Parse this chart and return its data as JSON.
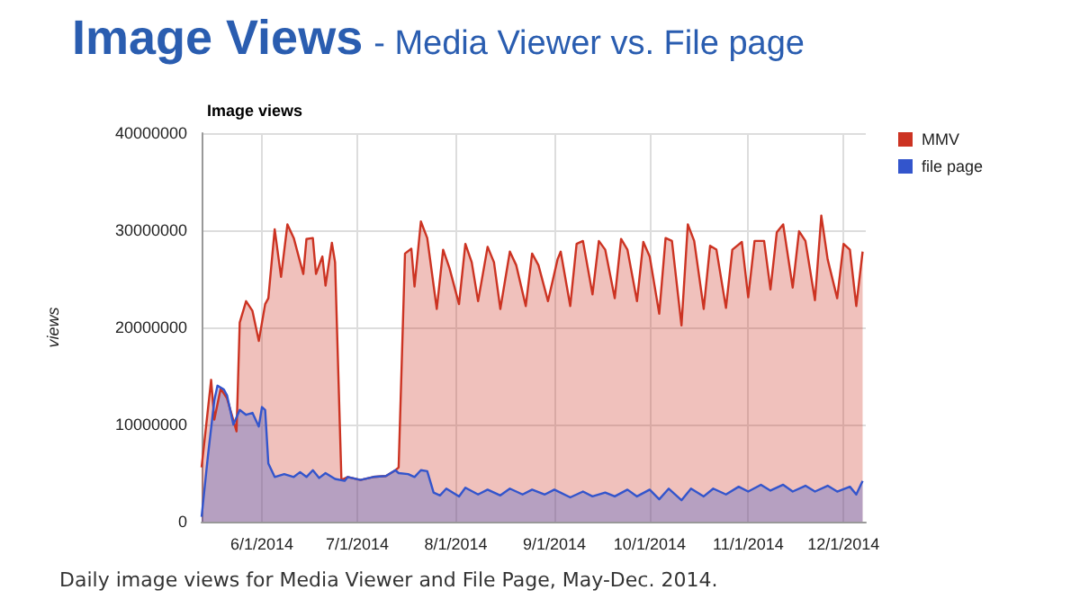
{
  "chart_data": {
    "type": "area",
    "title": "Image Views",
    "subtitle": "- Media Viewer vs. File page",
    "ylabel": "views",
    "annotations": [
      "Image views",
      "Daily image views for Media Viewer and File Page, May-Dec. 2014."
    ],
    "xlim": [
      "2014-05-13",
      "2014-12-08"
    ],
    "xticks": [
      {
        "value": "2014-06-01",
        "label": "6/1/2014"
      },
      {
        "value": "2014-07-01",
        "label": "7/1/2014"
      },
      {
        "value": "2014-08-01",
        "label": "8/1/2014"
      },
      {
        "value": "2014-09-01",
        "label": "9/1/2014"
      },
      {
        "value": "2014-10-01",
        "label": "10/1/2014"
      },
      {
        "value": "2014-11-01",
        "label": "11/1/2014"
      },
      {
        "value": "2014-12-01",
        "label": "12/1/2014"
      }
    ],
    "ylim": [
      0,
      40000000
    ],
    "yticks": [
      0,
      10000000,
      20000000,
      30000000,
      40000000
    ],
    "grid": true,
    "legend": "right",
    "marker": "none",
    "series": [
      {
        "name": "MMV",
        "color": "#cc3322",
        "x": [
          "2014-05-13",
          "2014-05-16",
          "2014-05-17",
          "2014-05-19",
          "2014-05-21",
          "2014-05-24",
          "2014-05-25",
          "2014-05-27",
          "2014-05-29",
          "2014-05-31",
          "2014-06-02",
          "2014-06-03",
          "2014-06-05",
          "2014-06-07",
          "2014-06-09",
          "2014-06-11",
          "2014-06-14",
          "2014-06-15",
          "2014-06-17",
          "2014-06-18",
          "2014-06-20",
          "2014-06-21",
          "2014-06-23",
          "2014-06-24",
          "2014-06-26",
          "2014-06-28",
          "2014-07-02",
          "2014-07-06",
          "2014-07-10",
          "2014-07-13",
          "2014-07-14",
          "2014-07-16",
          "2014-07-18",
          "2014-07-19",
          "2014-07-21",
          "2014-07-23",
          "2014-07-26",
          "2014-07-28",
          "2014-07-30",
          "2014-08-02",
          "2014-08-04",
          "2014-08-06",
          "2014-08-08",
          "2014-08-11",
          "2014-08-13",
          "2014-08-15",
          "2014-08-18",
          "2014-08-20",
          "2014-08-23",
          "2014-08-25",
          "2014-08-27",
          "2014-08-30",
          "2014-09-02",
          "2014-09-03",
          "2014-09-06",
          "2014-09-08",
          "2014-09-10",
          "2014-09-13",
          "2014-09-15",
          "2014-09-17",
          "2014-09-20",
          "2014-09-22",
          "2014-09-24",
          "2014-09-27",
          "2014-09-29",
          "2014-10-01",
          "2014-10-04",
          "2014-10-06",
          "2014-10-08",
          "2014-10-11",
          "2014-10-13",
          "2014-10-15",
          "2014-10-18",
          "2014-10-20",
          "2014-10-22",
          "2014-10-25",
          "2014-10-27",
          "2014-10-30",
          "2014-11-01",
          "2014-11-03",
          "2014-11-06",
          "2014-11-08",
          "2014-11-10",
          "2014-11-12",
          "2014-11-15",
          "2014-11-17",
          "2014-11-19",
          "2014-11-22",
          "2014-11-24",
          "2014-11-26",
          "2014-11-29",
          "2014-12-01",
          "2014-12-03",
          "2014-12-05",
          "2014-12-07"
        ],
        "values": [
          5600000,
          14600000,
          10500000,
          13700000,
          12700000,
          9300000,
          20500000,
          22700000,
          21700000,
          18600000,
          22400000,
          23000000,
          30100000,
          25200000,
          30600000,
          29200000,
          25500000,
          29100000,
          29200000,
          25500000,
          27300000,
          24300000,
          28700000,
          26700000,
          4300000,
          4600000,
          4300000,
          4600000,
          4700000,
          5300000,
          5600000,
          27600000,
          28100000,
          24200000,
          30900000,
          29200000,
          21900000,
          28000000,
          26100000,
          22400000,
          28600000,
          26700000,
          22700000,
          28300000,
          26700000,
          21900000,
          27800000,
          26400000,
          22200000,
          27600000,
          26400000,
          22700000,
          27000000,
          27800000,
          22200000,
          28600000,
          28900000,
          23400000,
          28900000,
          28000000,
          23000000,
          29100000,
          28000000,
          22700000,
          28800000,
          27300000,
          21400000,
          29200000,
          28900000,
          20200000,
          30600000,
          28900000,
          21900000,
          28400000,
          28000000,
          22000000,
          28000000,
          28800000,
          23100000,
          28900000,
          28900000,
          23900000,
          29800000,
          30600000,
          24100000,
          29900000,
          28900000,
          22800000,
          31500000,
          27000000,
          23000000,
          28600000,
          28000000,
          22200000,
          27800000
        ]
      },
      {
        "name": "file page",
        "color": "#3355cc",
        "x": [
          "2014-05-13",
          "2014-05-15",
          "2014-05-17",
          "2014-05-18",
          "2014-05-20",
          "2014-05-21",
          "2014-05-23",
          "2014-05-25",
          "2014-05-27",
          "2014-05-29",
          "2014-05-31",
          "2014-06-01",
          "2014-06-02",
          "2014-06-03",
          "2014-06-05",
          "2014-06-08",
          "2014-06-11",
          "2014-06-13",
          "2014-06-15",
          "2014-06-17",
          "2014-06-19",
          "2014-06-21",
          "2014-06-24",
          "2014-06-27",
          "2014-06-28",
          "2014-07-02",
          "2014-07-06",
          "2014-07-10",
          "2014-07-13",
          "2014-07-14",
          "2014-07-17",
          "2014-07-19",
          "2014-07-21",
          "2014-07-23",
          "2014-07-25",
          "2014-07-27",
          "2014-07-29",
          "2014-08-02",
          "2014-08-04",
          "2014-08-08",
          "2014-08-11",
          "2014-08-15",
          "2014-08-18",
          "2014-08-22",
          "2014-08-25",
          "2014-08-29",
          "2014-09-01",
          "2014-09-06",
          "2014-09-10",
          "2014-09-13",
          "2014-09-17",
          "2014-09-20",
          "2014-09-24",
          "2014-09-27",
          "2014-10-01",
          "2014-10-04",
          "2014-10-07",
          "2014-10-11",
          "2014-10-14",
          "2014-10-18",
          "2014-10-21",
          "2014-10-25",
          "2014-10-29",
          "2014-11-01",
          "2014-11-05",
          "2014-11-08",
          "2014-11-12",
          "2014-11-15",
          "2014-11-19",
          "2014-11-22",
          "2014-11-26",
          "2014-11-29",
          "2014-12-03",
          "2014-12-05",
          "2014-12-07"
        ],
        "values": [
          500000,
          6800000,
          12500000,
          14000000,
          13600000,
          13000000,
          10000000,
          11500000,
          11000000,
          11200000,
          9800000,
          11800000,
          11500000,
          6000000,
          4600000,
          4900000,
          4600000,
          5100000,
          4600000,
          5300000,
          4500000,
          5000000,
          4400000,
          4200000,
          4600000,
          4300000,
          4600000,
          4700000,
          5300000,
          5000000,
          4900000,
          4600000,
          5300000,
          5200000,
          3000000,
          2700000,
          3400000,
          2600000,
          3500000,
          2800000,
          3300000,
          2700000,
          3400000,
          2800000,
          3300000,
          2800000,
          3300000,
          2500000,
          3100000,
          2600000,
          3000000,
          2600000,
          3300000,
          2600000,
          3300000,
          2300000,
          3400000,
          2200000,
          3400000,
          2600000,
          3400000,
          2800000,
          3600000,
          3100000,
          3800000,
          3200000,
          3800000,
          3100000,
          3700000,
          3100000,
          3700000,
          3100000,
          3600000,
          2800000,
          4200000
        ]
      }
    ]
  }
}
